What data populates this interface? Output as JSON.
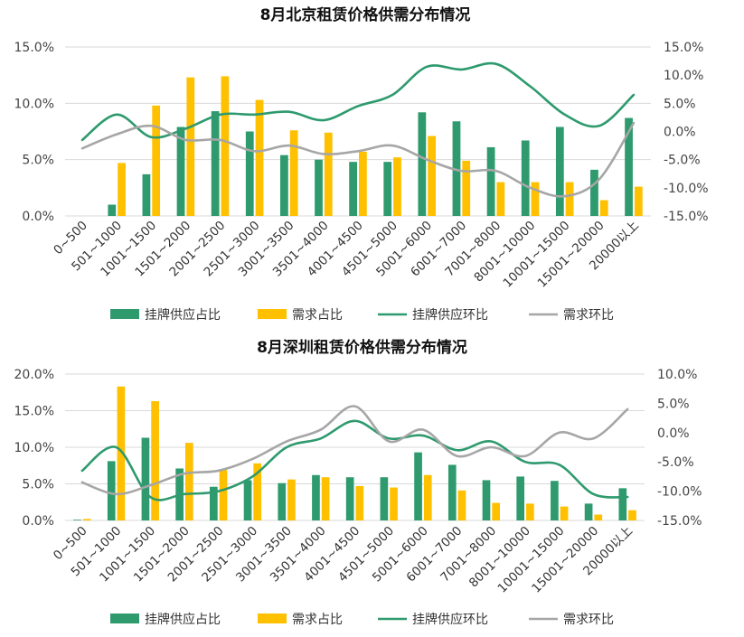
{
  "colors": {
    "supply_bar": "#2e9a6e",
    "demand_bar": "#ffc000",
    "supply_line": "#2e9a6e",
    "demand_line": "#a6a6a6"
  },
  "chart_data": [
    {
      "type": "bar",
      "title": "8月北京租赁价格供需分布情况",
      "categories": [
        "0~500",
        "501~1000",
        "1001~1500",
        "1501~2000",
        "2001~2500",
        "2501~3000",
        "3001~3500",
        "3501~4000",
        "4001~4500",
        "4501~5000",
        "5001~6000",
        "6001~7000",
        "7001~8000",
        "8001~10000",
        "10001~15000",
        "15001~20000",
        "20000以上"
      ],
      "left_axis": {
        "ylim": [
          0,
          15
        ],
        "ticks": [
          "0.0%",
          "5.0%",
          "10.0%",
          "15.0%"
        ],
        "tick_values": [
          0,
          5,
          10,
          15
        ]
      },
      "right_axis": {
        "ylim": [
          -15,
          15
        ],
        "ticks": [
          "-15.0%",
          "-10.0%",
          "-5.0%",
          "0.0%",
          "5.0%",
          "10.0%",
          "15.0%"
        ],
        "tick_values": [
          -15,
          -10,
          -5,
          0,
          5,
          10,
          15
        ]
      },
      "legend_position": "bottom",
      "series": [
        {
          "name": "挂牌供应占比",
          "kind": "bar",
          "axis": "left",
          "values": [
            0,
            1.0,
            3.7,
            7.9,
            9.3,
            7.5,
            5.4,
            5.0,
            4.8,
            4.8,
            9.2,
            8.4,
            6.1,
            6.7,
            7.9,
            4.1,
            8.7
          ]
        },
        {
          "name": "需求占比",
          "kind": "bar",
          "axis": "left",
          "values": [
            0,
            4.7,
            9.8,
            12.3,
            12.4,
            10.3,
            7.6,
            7.4,
            5.7,
            5.2,
            7.1,
            4.9,
            3.0,
            3.0,
            3.0,
            1.4,
            2.6
          ]
        },
        {
          "name": "挂牌供应环比",
          "kind": "line",
          "axis": "right",
          "values": [
            -1.5,
            3.0,
            -1.0,
            0.5,
            3.0,
            3.0,
            3.5,
            2.0,
            4.5,
            6.5,
            11.5,
            11.0,
            12.0,
            8.0,
            3.0,
            1.0,
            6.5
          ]
        },
        {
          "name": "需求环比",
          "kind": "line",
          "axis": "right",
          "values": [
            -3.0,
            -0.5,
            1.0,
            -1.5,
            -1.5,
            -3.5,
            -2.5,
            -4.0,
            -3.5,
            -2.5,
            -5.0,
            -7.0,
            -7.0,
            -10.0,
            -11.5,
            -8.5,
            1.5
          ]
        }
      ]
    },
    {
      "type": "bar",
      "title": "8月深圳租赁价格供需分布情况",
      "categories": [
        "0~500",
        "501~1000",
        "1001~1500",
        "1501~2000",
        "2001~2500",
        "2501~3000",
        "3001~3500",
        "3501~4000",
        "4001~4500",
        "4501~5000",
        "5001~6000",
        "6001~7000",
        "7001~8000",
        "8001~10000",
        "10001~15000",
        "15001~20000",
        "20000以上"
      ],
      "left_axis": {
        "ylim": [
          0,
          20
        ],
        "ticks": [
          "0.0%",
          "5.0%",
          "10.0%",
          "15.0%",
          "20.0%"
        ],
        "tick_values": [
          0,
          5,
          10,
          15,
          20
        ]
      },
      "right_axis": {
        "ylim": [
          -15,
          10
        ],
        "ticks": [
          "-15.0%",
          "-10.0%",
          "-5.0%",
          "0.0%",
          "5.0%",
          "10.0%"
        ],
        "tick_values": [
          -15,
          -10,
          -5,
          0,
          5,
          10
        ]
      },
      "legend_position": "bottom",
      "series": [
        {
          "name": "挂牌供应占比",
          "kind": "bar",
          "axis": "left",
          "values": [
            0.1,
            8.1,
            11.3,
            7.1,
            4.6,
            5.5,
            5.1,
            6.2,
            5.9,
            5.9,
            9.3,
            7.6,
            5.5,
            6.0,
            5.4,
            2.3,
            4.4
          ]
        },
        {
          "name": "需求占比",
          "kind": "bar",
          "axis": "left",
          "values": [
            0.2,
            18.3,
            16.3,
            10.6,
            6.9,
            7.8,
            5.6,
            5.9,
            4.7,
            4.5,
            6.2,
            4.1,
            2.4,
            2.3,
            1.9,
            0.8,
            1.4
          ]
        },
        {
          "name": "挂牌供应环比",
          "kind": "line",
          "axis": "right",
          "values": [
            -6.5,
            -2.5,
            -11.0,
            -10.5,
            -10.0,
            -7.5,
            -2.5,
            -1.0,
            2.0,
            -1.0,
            -0.5,
            -3.0,
            -1.5,
            -5.0,
            -5.5,
            -10.5,
            -11.0
          ]
        },
        {
          "name": "需求环比",
          "kind": "line",
          "axis": "right",
          "values": [
            -8.5,
            -10.5,
            -9.0,
            -7.0,
            -6.5,
            -4.5,
            -1.5,
            0.5,
            4.5,
            -1.5,
            0.5,
            -4.0,
            -2.5,
            -4.0,
            0.0,
            -1.0,
            4.0
          ]
        }
      ]
    }
  ]
}
